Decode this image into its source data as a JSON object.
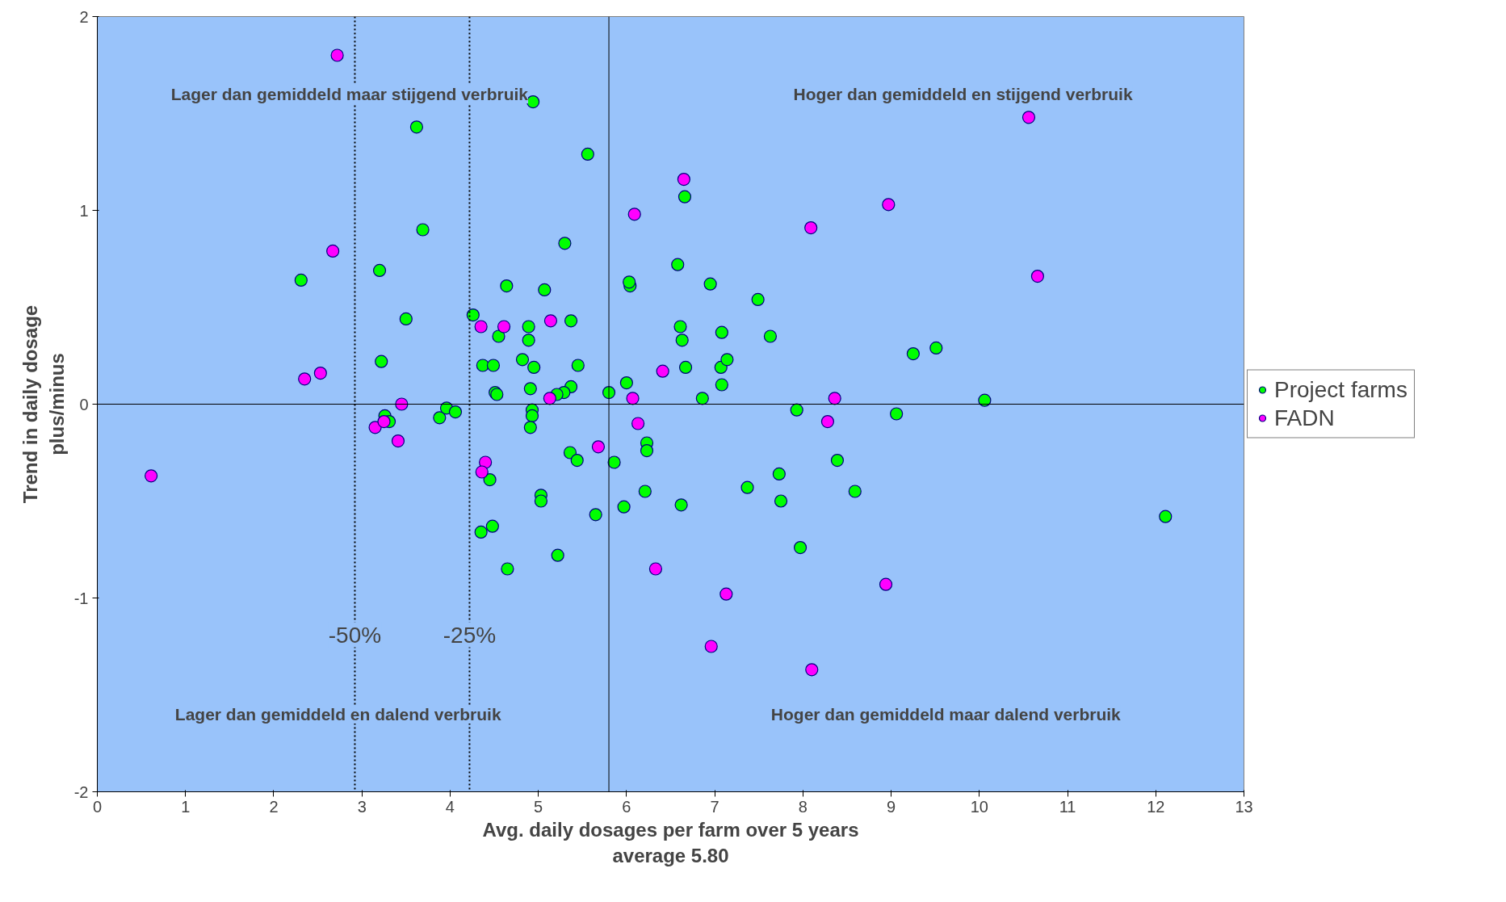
{
  "chart_data": {
    "type": "scatter",
    "xlabel": "Avg. daily dosages per farm over 5 years\naverage 5.80",
    "ylabel": "Trend in daily dosage\nplus/minus",
    "xlim": [
      0,
      13
    ],
    "ylim": [
      -2,
      2
    ],
    "xticks": [
      0,
      1,
      2,
      3,
      4,
      5,
      6,
      7,
      8,
      9,
      10,
      11,
      12,
      13
    ],
    "yticks": [
      -2,
      -1,
      0,
      1,
      2
    ],
    "grid": false,
    "legend": "right",
    "marker": "circle",
    "annotations": [
      "Lager dan gemiddeld maar stijgend verbruik",
      "Hoger dan gemiddeld en stijgend verbruik",
      "Lager dan gemiddeld en dalend verbruik",
      "Hoger dan gemiddeld maar dalend verbruik",
      {
        "text": "-50%",
        "x": 2.92,
        "y": -1.19
      },
      {
        "text": "-25%",
        "x": 4.22,
        "y": -1.19
      }
    ],
    "ref_lines": [
      {
        "axis": "x",
        "value": 5.8,
        "label": null,
        "line_style": "solid"
      },
      {
        "axis": "x",
        "value": 2.92,
        "label": null,
        "line_style": "dotted"
      },
      {
        "axis": "x",
        "value": 4.22,
        "label": null,
        "line_style": "dotted"
      },
      {
        "axis": "y",
        "value": 0,
        "label": null,
        "line_style": "solid"
      }
    ],
    "series": [
      {
        "name": "Project farms",
        "color": "#00ff00",
        "x": [
          2.31,
          3.2,
          3.62,
          3.69,
          3.5,
          3.22,
          3.26,
          3.31,
          3.88,
          3.96,
          4.06,
          4.26,
          4.37,
          4.49,
          4.55,
          4.51,
          4.53,
          4.64,
          4.82,
          4.89,
          4.89,
          4.95,
          4.91,
          4.93,
          4.93,
          4.91,
          4.94,
          5.07,
          5.3,
          5.37,
          5.45,
          5.37,
          5.29,
          5.21,
          5.56,
          5.8,
          5.36,
          5.44,
          5.03,
          5.03,
          4.45,
          4.35,
          4.48,
          4.65,
          5.22,
          5.65,
          5.86,
          5.97,
          6.0,
          6.04,
          6.03,
          6.23,
          6.23,
          6.21,
          6.58,
          6.61,
          6.63,
          6.66,
          6.67,
          6.62,
          6.86,
          6.95,
          7.08,
          7.08,
          7.07,
          7.14,
          7.49,
          7.63,
          7.37,
          7.73,
          7.75,
          7.93,
          7.97,
          8.39,
          8.59,
          9.06,
          9.25,
          9.51,
          10.06,
          12.11
        ],
        "values": [
          0.64,
          0.69,
          1.43,
          0.9,
          0.44,
          0.22,
          -0.06,
          -0.09,
          -0.07,
          -0.02,
          -0.04,
          0.46,
          0.2,
          0.2,
          0.35,
          0.06,
          0.05,
          0.61,
          0.23,
          0.4,
          0.33,
          0.19,
          0.08,
          -0.03,
          -0.06,
          -0.12,
          1.56,
          0.59,
          0.83,
          0.43,
          0.2,
          0.09,
          0.06,
          0.05,
          1.29,
          0.06,
          -0.25,
          -0.29,
          -0.47,
          -0.5,
          -0.39,
          -0.66,
          -0.63,
          -0.85,
          -0.78,
          -0.57,
          -0.3,
          -0.53,
          0.11,
          0.61,
          0.63,
          -0.2,
          -0.24,
          -0.45,
          0.72,
          0.4,
          0.33,
          1.07,
          0.19,
          -0.52,
          0.03,
          0.62,
          0.37,
          0.1,
          0.19,
          0.23,
          0.54,
          0.35,
          -0.43,
          -0.36,
          -0.5,
          -0.03,
          -0.74,
          -0.29,
          -0.45,
          -0.05,
          0.26,
          0.29,
          0.02,
          -0.58
        ]
      },
      {
        "name": "FADN",
        "color": "#ff00ff",
        "x": [
          0.61,
          2.72,
          2.67,
          2.35,
          2.53,
          3.45,
          3.15,
          3.25,
          3.41,
          4.35,
          4.61,
          5.14,
          5.13,
          4.4,
          4.36,
          5.68,
          6.09,
          6.07,
          6.13,
          6.41,
          6.65,
          6.33,
          6.96,
          7.13,
          8.09,
          8.1,
          8.28,
          8.36,
          8.97,
          8.94,
          10.56,
          10.66
        ],
        "values": [
          -0.37,
          1.8,
          0.79,
          0.13,
          0.16,
          0.0,
          -0.12,
          -0.09,
          -0.19,
          0.4,
          0.4,
          0.43,
          0.03,
          -0.3,
          -0.35,
          -0.22,
          0.98,
          0.03,
          -0.1,
          0.17,
          1.16,
          -0.85,
          -1.25,
          -0.98,
          0.91,
          -1.37,
          -0.09,
          0.03,
          1.03,
          -0.93,
          1.48,
          0.66
        ]
      }
    ]
  }
}
